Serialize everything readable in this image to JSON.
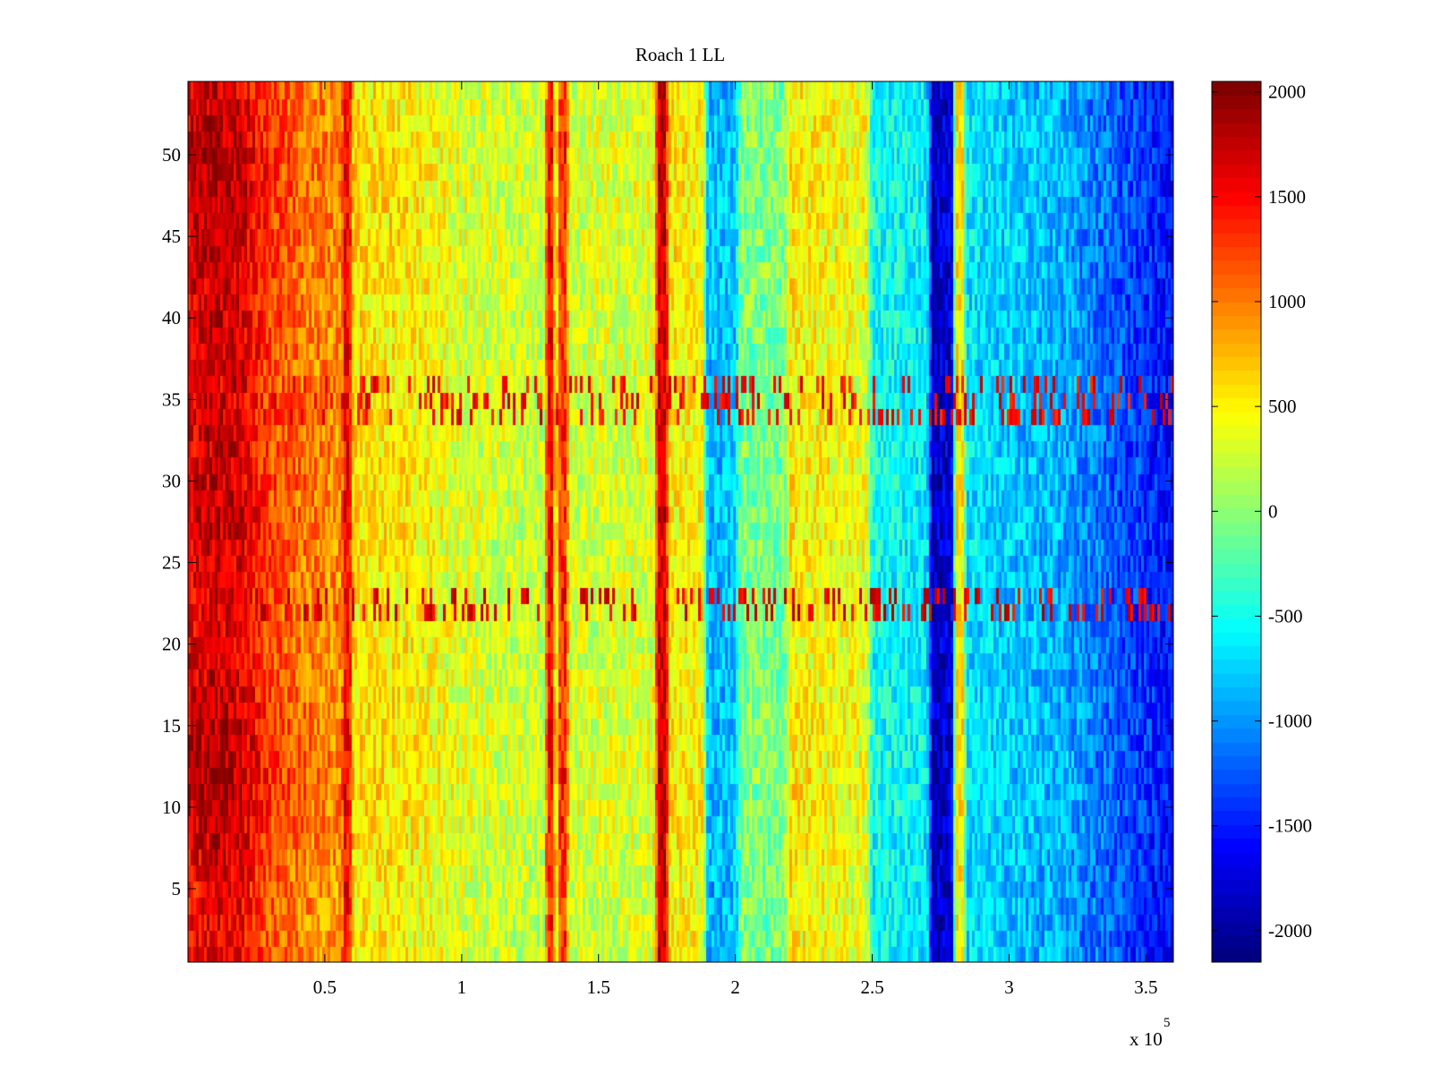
{
  "chart_data": {
    "type": "heatmap",
    "title": "Roach 1 LL",
    "xlabel": "",
    "ylabel": "",
    "x_range": [
      0,
      360000
    ],
    "y_range": [
      0.5,
      54.5
    ],
    "x_ticks": [
      {
        "value": 50000,
        "label": "0.5"
      },
      {
        "value": 100000,
        "label": "1"
      },
      {
        "value": 150000,
        "label": "1.5"
      },
      {
        "value": 200000,
        "label": "2"
      },
      {
        "value": 250000,
        "label": "2.5"
      },
      {
        "value": 300000,
        "label": "3"
      },
      {
        "value": 350000,
        "label": "3.5"
      }
    ],
    "x_exponent_base": "x 10",
    "x_exponent_power": "5",
    "y_ticks": [
      {
        "value": 5,
        "label": "5"
      },
      {
        "value": 10,
        "label": "10"
      },
      {
        "value": 15,
        "label": "15"
      },
      {
        "value": 20,
        "label": "20"
      },
      {
        "value": 25,
        "label": "25"
      },
      {
        "value": 30,
        "label": "30"
      },
      {
        "value": 35,
        "label": "35"
      },
      {
        "value": 40,
        "label": "40"
      },
      {
        "value": 45,
        "label": "45"
      },
      {
        "value": 50,
        "label": "50"
      }
    ],
    "colorbar": {
      "colormap": "jet",
      "range": [
        -2150,
        2050
      ],
      "ticks": [
        {
          "value": 2000,
          "label": "2000"
        },
        {
          "value": 1500,
          "label": "1500"
        },
        {
          "value": 1000,
          "label": "1000"
        },
        {
          "value": 500,
          "label": "500"
        },
        {
          "value": 0,
          "label": "0"
        },
        {
          "value": -500,
          "label": "-500"
        },
        {
          "value": -1000,
          "label": "-1000"
        },
        {
          "value": -1500,
          "label": "-1500"
        },
        {
          "value": -2000,
          "label": "-2000"
        }
      ]
    },
    "rows": 54,
    "column_profile": [
      {
        "x": 0,
        "value": 1500
      },
      {
        "x": 10000,
        "value": 1650
      },
      {
        "x": 20000,
        "value": 1550
      },
      {
        "x": 30000,
        "value": 1150
      },
      {
        "x": 45000,
        "value": 950
      },
      {
        "x": 56000,
        "value": 900
      },
      {
        "x": 57500,
        "value": 1550
      },
      {
        "x": 59000,
        "value": 1500
      },
      {
        "x": 60500,
        "value": 550
      },
      {
        "x": 80000,
        "value": 500
      },
      {
        "x": 100000,
        "value": 300
      },
      {
        "x": 130000,
        "value": 200
      },
      {
        "x": 131500,
        "value": 1450
      },
      {
        "x": 133000,
        "value": 1450
      },
      {
        "x": 134500,
        "value": 250
      },
      {
        "x": 136000,
        "value": 1350
      },
      {
        "x": 138000,
        "value": 1350
      },
      {
        "x": 139500,
        "value": 250
      },
      {
        "x": 170000,
        "value": 300
      },
      {
        "x": 172000,
        "value": 1700
      },
      {
        "x": 174500,
        "value": 1700
      },
      {
        "x": 176000,
        "value": 500
      },
      {
        "x": 188000,
        "value": 450
      },
      {
        "x": 190000,
        "value": -900
      },
      {
        "x": 200000,
        "value": -850
      },
      {
        "x": 202000,
        "value": -100
      },
      {
        "x": 218000,
        "value": -100
      },
      {
        "x": 220000,
        "value": 500
      },
      {
        "x": 248000,
        "value": 350
      },
      {
        "x": 250000,
        "value": -550
      },
      {
        "x": 270000,
        "value": -650
      },
      {
        "x": 272000,
        "value": -1900
      },
      {
        "x": 279000,
        "value": -1850
      },
      {
        "x": 280500,
        "value": 500
      },
      {
        "x": 283000,
        "value": 500
      },
      {
        "x": 284500,
        "value": -700
      },
      {
        "x": 320000,
        "value": -950
      },
      {
        "x": 340000,
        "value": -1300
      },
      {
        "x": 360000,
        "value": -1650
      }
    ],
    "row_modulation": [
      {
        "y": 1,
        "value": 0
      },
      {
        "y": 5,
        "value": 0
      },
      {
        "y": 8,
        "value": 100
      },
      {
        "y": 11,
        "value": 250
      },
      {
        "y": 14,
        "value": 200
      },
      {
        "y": 18,
        "value": 100
      },
      {
        "y": 20,
        "value": 50
      },
      {
        "y": 24,
        "value": 50
      },
      {
        "y": 28,
        "value": 150
      },
      {
        "y": 32,
        "value": 100
      },
      {
        "y": 40,
        "value": 100
      },
      {
        "y": 45,
        "value": 150
      },
      {
        "y": 50,
        "value": 250
      },
      {
        "y": 52,
        "value": 150
      },
      {
        "y": 54,
        "value": 100
      }
    ],
    "bright_row_bands": [
      {
        "y_from": 22,
        "y_to": 23,
        "peak": 1900
      },
      {
        "y_from": 34,
        "y_to": 36,
        "peak": 1800
      }
    ]
  }
}
